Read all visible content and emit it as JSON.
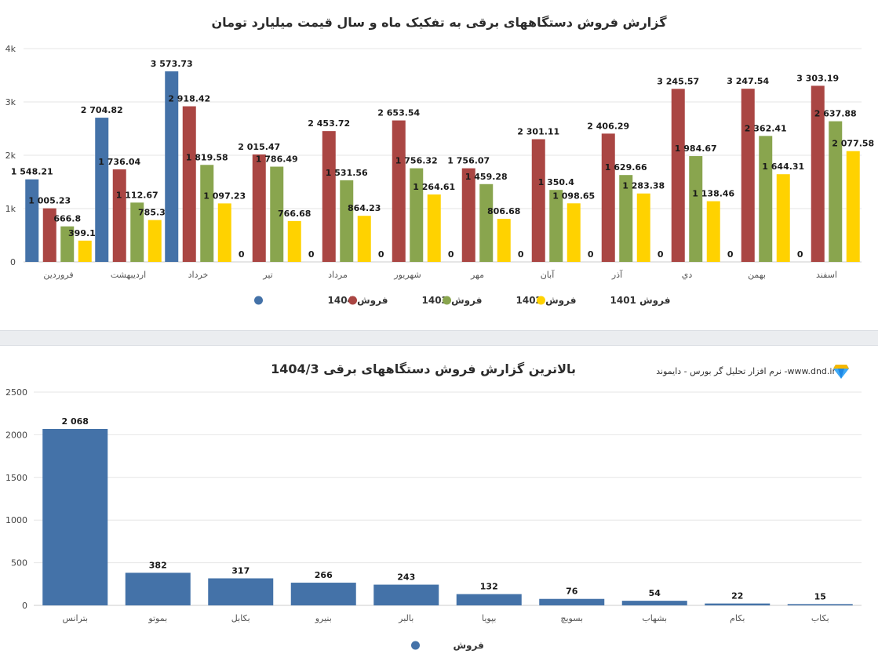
{
  "chart1": {
    "title": "گزارش فروش دستگاههای برقی به تفکیک ماه و سال قیمت میلیارد تومان",
    "chart_data": {
      "type": "bar",
      "categories": [
        "فروردین",
        "اردیبهشت",
        "خرداد",
        "تیر",
        "مرداد",
        "شهریور",
        "مهر",
        "آبان",
        "آذر",
        "دي",
        "بهمن",
        "اسفند"
      ],
      "series": [
        {
          "name": "فروش 1404",
          "color": "#4472a8",
          "values": [
            1548.21,
            2704.82,
            3573.73,
            0,
            0,
            0,
            0,
            0,
            0,
            0,
            0,
            0
          ],
          "labels": [
            "1 548.21",
            "2 704.82",
            "3 573.73",
            "0",
            "0",
            "0",
            "0",
            "0",
            "0",
            "0",
            "0",
            "0"
          ]
        },
        {
          "name": "فروش 1403",
          "color": "#aa4643",
          "values": [
            1005.23,
            1736.04,
            2918.42,
            2015.47,
            2453.72,
            2653.54,
            1756.07,
            2301.11,
            2406.29,
            3245.57,
            3247.54,
            3303.19
          ],
          "labels": [
            "1 005.23",
            "1 736.04",
            "2 918.42",
            "2 015.47",
            "2 453.72",
            "2 653.54",
            "1 756.07",
            "2 301.11",
            "2 406.29",
            "3 245.57",
            "3 247.54",
            "3 303.19"
          ]
        },
        {
          "name": "فروش 1402",
          "color": "#89a54e",
          "values": [
            666.8,
            1112.67,
            1819.58,
            1786.49,
            1531.56,
            1756.32,
            1459.28,
            1350.4,
            1629.66,
            1984.67,
            2362.41,
            2637.88
          ],
          "labels": [
            "666.8",
            "1 112.67",
            "1 819.58",
            "1 786.49",
            "1 531.56",
            "1 756.32",
            "1 459.28",
            "1 350.4",
            "1 629.66",
            "1 984.67",
            "2 362.41",
            "2 637.88"
          ]
        },
        {
          "name": "فروش 1401",
          "color": "#ffd200",
          "values": [
            399.16,
            785.31,
            1097.23,
            766.68,
            864.23,
            1264.61,
            806.68,
            1098.65,
            1283.38,
            1138.46,
            1644.31,
            2077.58
          ],
          "labels": [
            "399.16",
            "785.31",
            "1 097.23",
            "766.68",
            "864.23",
            "1 264.61",
            "806.68",
            "1 098.65",
            "1 283.38",
            "1 138.46",
            "1 644.31",
            "2 077.58"
          ]
        }
      ],
      "ylim": [
        0,
        4000
      ],
      "yticks": [
        0,
        1000,
        2000,
        3000,
        4000
      ],
      "ytick_labels": [
        "0",
        "1k",
        "2k",
        "3k",
        "4k"
      ],
      "legend_position": "bottom"
    }
  },
  "chart2": {
    "title": "بالاترین گزارش فروش دستگاههای برقی 1404/3",
    "brand": "نرم افزار تحلیل گر بورس - دایموند -www.dnd.ir",
    "chart_data": {
      "type": "bar",
      "categories": [
        "بترانس",
        "بموتو",
        "بکابل",
        "بنیرو",
        "بالبر",
        "بپویا",
        "بسویچ",
        "بشهاب",
        "بکام",
        "بکاب"
      ],
      "series": [
        {
          "name": "فروش",
          "color": "#4472a8",
          "values": [
            2068,
            382,
            317,
            266,
            243,
            132,
            76,
            54,
            22,
            15
          ],
          "labels": [
            "2 068",
            "382",
            "317",
            "266",
            "243",
            "132",
            "76",
            "54",
            "22",
            "15"
          ]
        }
      ],
      "ylim": [
        0,
        2500
      ],
      "yticks": [
        0,
        500,
        1000,
        1500,
        2000,
        2500
      ],
      "ytick_labels": [
        "0",
        "500",
        "1000",
        "1500",
        "2000",
        "2500"
      ],
      "legend_position": "bottom"
    }
  },
  "icons": {
    "brand_icon": "diamond-icon"
  }
}
